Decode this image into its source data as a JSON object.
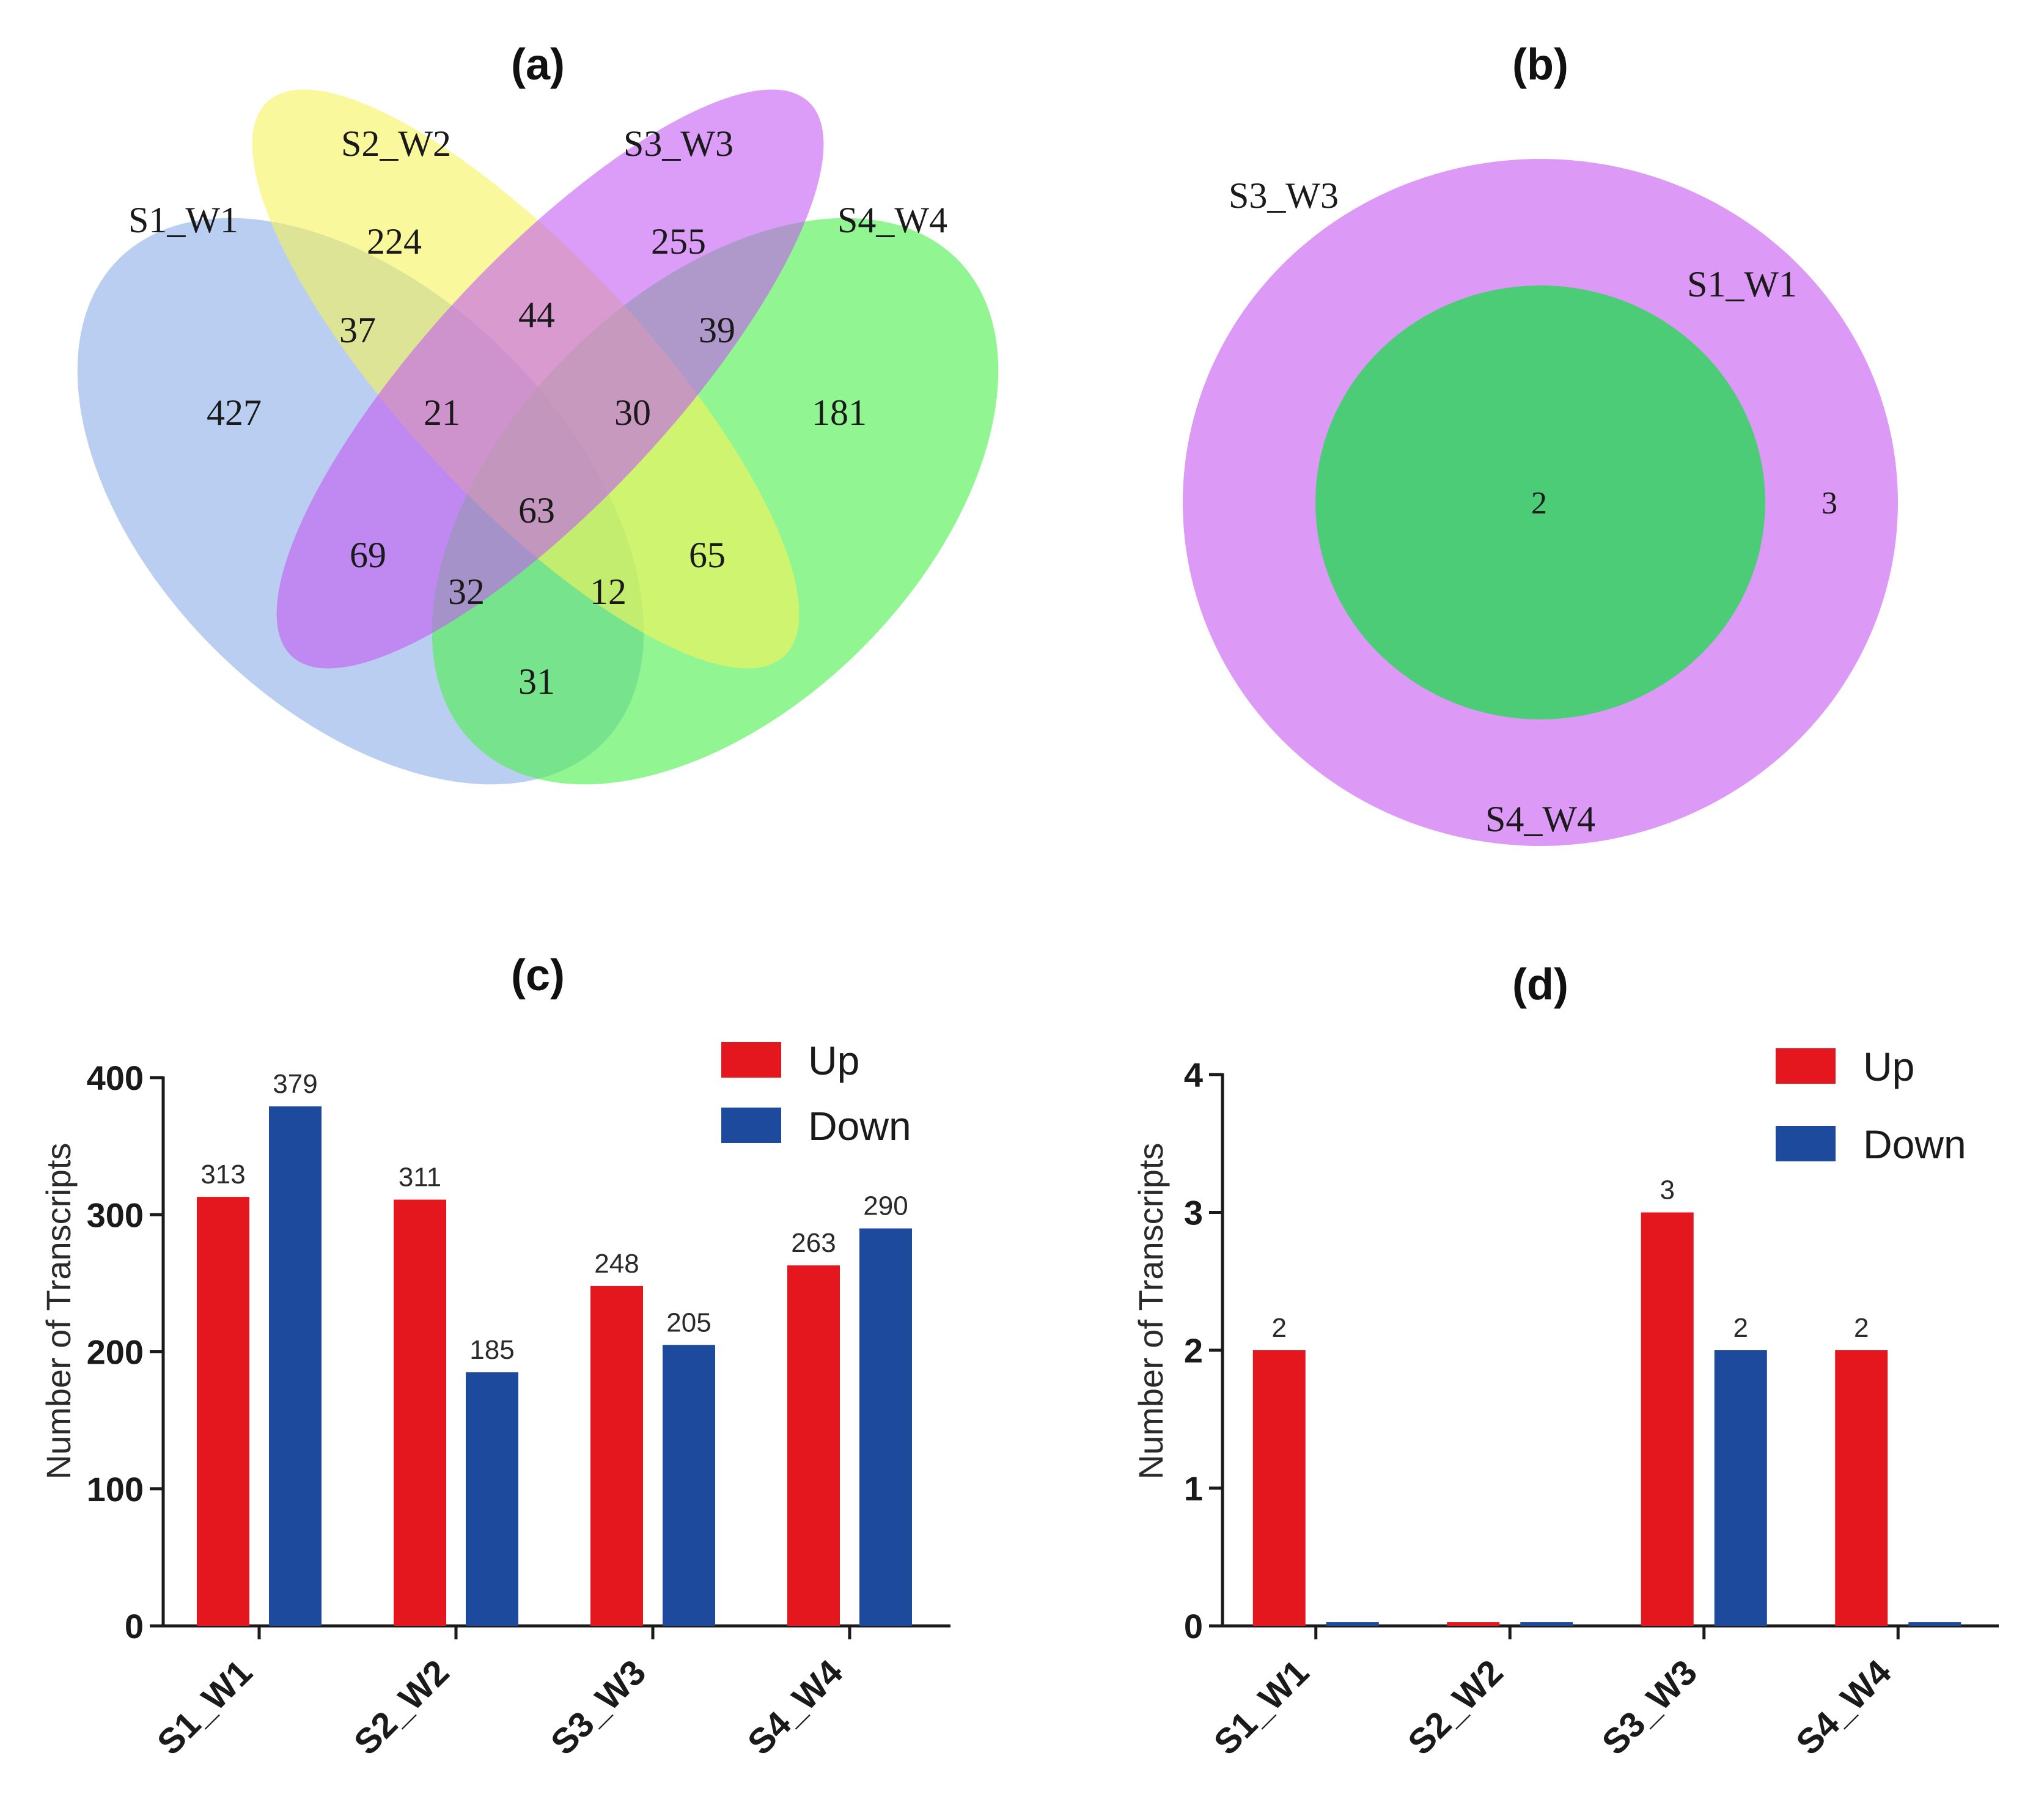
{
  "colors": {
    "up": "#e3171d",
    "down": "#1d4a9c",
    "venn_s1": "#8fb0e8",
    "venn_s2": "#f7f35a",
    "venn_s3": "#c35cf2",
    "venn_s4": "#4df04d",
    "outer_b": "#dc99f5",
    "inner_b": "#4dcc77"
  },
  "chart_data": [
    {
      "panel": "a",
      "type": "venn",
      "title": "(a)",
      "sets": [
        "S1_W1",
        "S2_W2",
        "S3_W3",
        "S4_W4"
      ],
      "regions": {
        "only_S1_W1": "427",
        "only_S2_W2": "224",
        "only_S3_W3": "255",
        "only_S4_W4": "181",
        "S1_S2": "37",
        "S2_S3": "44",
        "S3_S4": "39",
        "S1_S2_S3": "21",
        "S2_S3_S4": "30",
        "S1_S2_S3_S4": "63",
        "S1_S3": "69",
        "S2_S4": "65",
        "S1_S3_S4": "32",
        "S1_S2_S4": "12",
        "S1_S4": "31"
      }
    },
    {
      "panel": "b",
      "type": "venn",
      "title": "(b)",
      "outer_labels": [
        "S3_W3",
        "S4_W4"
      ],
      "inner_label": "S1_W1",
      "regions": {
        "inner": "2",
        "outer_only": "3"
      }
    },
    {
      "panel": "c",
      "type": "bar",
      "title": "(c)",
      "categories": [
        "S1_W1",
        "S2_W2",
        "S3_W3",
        "S4_W4"
      ],
      "series": [
        {
          "name": "Up",
          "values": [
            313,
            311,
            248,
            263
          ],
          "labels": [
            "313",
            "311",
            "248",
            "263"
          ]
        },
        {
          "name": "Down",
          "values": [
            379,
            185,
            205,
            290
          ],
          "labels": [
            "379",
            "185",
            "205",
            "290"
          ]
        }
      ],
      "ylabel": "Number of Transcripts",
      "ylim": [
        0,
        400
      ],
      "yticks": [
        0,
        100,
        200,
        300,
        400
      ],
      "ytick_labels": [
        "0",
        "100",
        "200",
        "300",
        "400"
      ],
      "legend_position": "top-right"
    },
    {
      "panel": "d",
      "type": "bar",
      "title": "(d)",
      "categories": [
        "S1_W1",
        "S2_W2",
        "S3_W3",
        "S4_W4"
      ],
      "series": [
        {
          "name": "Up",
          "values": [
            2,
            0,
            3,
            2
          ],
          "labels": [
            "2",
            "",
            "3",
            "2"
          ]
        },
        {
          "name": "Down",
          "values": [
            0,
            0,
            2,
            0
          ],
          "labels": [
            "",
            "",
            "2",
            ""
          ]
        }
      ],
      "ylabel": "Number of Transcripts",
      "ylim": [
        0,
        4
      ],
      "yticks": [
        0,
        1,
        2,
        3,
        4
      ],
      "ytick_labels": [
        "0",
        "1",
        "2",
        "3",
        "4"
      ],
      "legend_position": "top-right"
    }
  ]
}
